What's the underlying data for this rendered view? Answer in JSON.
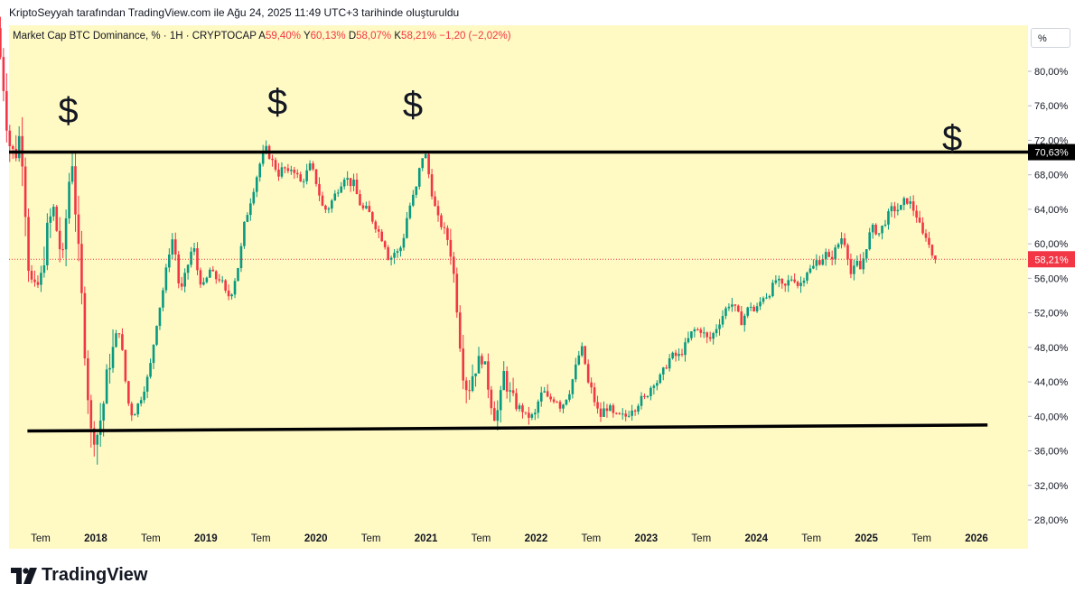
{
  "caption": "KriptoSeyyah tarafından TradingView.com ile Ağu 24, 2025 11:49 UTC+3 tarihinde oluşturuldu",
  "header": {
    "symbol": "Market Cap BTC Dominance, % · 1H · CRYPTOCAP",
    "a_label": "A",
    "a_value": "59,40%",
    "y_label": "Y",
    "y_value": "60,13%",
    "d_label": "D",
    "d_value": "58,07%",
    "k_label": "K",
    "k_value": "58,21%",
    "change": "−1,20 (−2,02%)"
  },
  "scale_button": "%",
  "logo_text": "TradingView",
  "colors": {
    "background": "#fff9c4",
    "up": "#089981",
    "down": "#f23645",
    "line": "#000000"
  },
  "chart_data": {
    "type": "candlestick",
    "title": "",
    "ylim": [
      26,
      85
    ],
    "y_ticks": [
      {
        "value": 80,
        "label": "80,00%"
      },
      {
        "value": 76,
        "label": "76,00%"
      },
      {
        "value": 72,
        "label": "72,00%"
      },
      {
        "value": 68,
        "label": "68,00%"
      },
      {
        "value": 64,
        "label": "64,00%"
      },
      {
        "value": 60,
        "label": "60,00%"
      },
      {
        "value": 56,
        "label": "56,00%"
      },
      {
        "value": 52,
        "label": "52,00%"
      },
      {
        "value": 48,
        "label": "48,00%"
      },
      {
        "value": 44,
        "label": "44,00%"
      },
      {
        "value": 40,
        "label": "40,00%"
      },
      {
        "value": 36,
        "label": "36,00%"
      },
      {
        "value": 32,
        "label": "32,00%"
      },
      {
        "value": 28,
        "label": "28,00%"
      }
    ],
    "x_ticks": [
      {
        "value": 2017.5,
        "label": "Tem",
        "bold": false
      },
      {
        "value": 2018,
        "label": "2018",
        "bold": true
      },
      {
        "value": 2018.5,
        "label": "Tem",
        "bold": false
      },
      {
        "value": 2019,
        "label": "2019",
        "bold": true
      },
      {
        "value": 2019.5,
        "label": "Tem",
        "bold": false
      },
      {
        "value": 2020,
        "label": "2020",
        "bold": true
      },
      {
        "value": 2020.5,
        "label": "Tem",
        "bold": false
      },
      {
        "value": 2021,
        "label": "2021",
        "bold": true
      },
      {
        "value": 2021.5,
        "label": "Tem",
        "bold": false
      },
      {
        "value": 2022,
        "label": "2022",
        "bold": true
      },
      {
        "value": 2022.5,
        "label": "Tem",
        "bold": false
      },
      {
        "value": 2023,
        "label": "2023",
        "bold": true
      },
      {
        "value": 2023.5,
        "label": "Tem",
        "bold": false
      },
      {
        "value": 2024,
        "label": "2024",
        "bold": true
      },
      {
        "value": 2024.5,
        "label": "Tem",
        "bold": false
      },
      {
        "value": 2025,
        "label": "2025",
        "bold": true
      },
      {
        "value": 2025.5,
        "label": "Tem",
        "bold": false
      },
      {
        "value": 2026,
        "label": "2026",
        "bold": true
      }
    ],
    "price_path": [
      [
        2017.12,
        85
      ],
      [
        2017.18,
        78
      ],
      [
        2017.22,
        72
      ],
      [
        2017.28,
        70
      ],
      [
        2017.33,
        73
      ],
      [
        2017.36,
        68
      ],
      [
        2017.4,
        58
      ],
      [
        2017.45,
        54
      ],
      [
        2017.52,
        56
      ],
      [
        2017.58,
        62
      ],
      [
        2017.63,
        64
      ],
      [
        2017.68,
        60
      ],
      [
        2017.72,
        58
      ],
      [
        2017.76,
        66
      ],
      [
        2017.8,
        70
      ],
      [
        2017.84,
        62
      ],
      [
        2017.88,
        55
      ],
      [
        2017.93,
        45
      ],
      [
        2017.97,
        38
      ],
      [
        2018.03,
        38
      ],
      [
        2018.08,
        41
      ],
      [
        2018.13,
        46
      ],
      [
        2018.18,
        48
      ],
      [
        2018.23,
        50
      ],
      [
        2018.27,
        46
      ],
      [
        2018.3,
        42
      ],
      [
        2018.35,
        40
      ],
      [
        2018.42,
        42
      ],
      [
        2018.5,
        45
      ],
      [
        2018.57,
        51
      ],
      [
        2018.63,
        55
      ],
      [
        2018.68,
        59
      ],
      [
        2018.72,
        61
      ],
      [
        2018.78,
        54
      ],
      [
        2018.84,
        57
      ],
      [
        2018.9,
        60
      ],
      [
        2018.95,
        56
      ],
      [
        2019.0,
        55
      ],
      [
        2019.05,
        57
      ],
      [
        2019.1,
        56
      ],
      [
        2019.15,
        56
      ],
      [
        2019.2,
        54
      ],
      [
        2019.24,
        54
      ],
      [
        2019.28,
        56
      ],
      [
        2019.32,
        58
      ],
      [
        2019.36,
        62
      ],
      [
        2019.4,
        64
      ],
      [
        2019.44,
        66
      ],
      [
        2019.48,
        68
      ],
      [
        2019.52,
        70
      ],
      [
        2019.56,
        71
      ],
      [
        2019.6,
        70
      ],
      [
        2019.64,
        69
      ],
      [
        2019.68,
        68
      ],
      [
        2019.72,
        69
      ],
      [
        2019.76,
        68
      ],
      [
        2019.8,
        69
      ],
      [
        2019.84,
        68
      ],
      [
        2019.88,
        67
      ],
      [
        2019.92,
        68
      ],
      [
        2019.96,
        69
      ],
      [
        2020.0,
        68
      ],
      [
        2020.04,
        66
      ],
      [
        2020.08,
        64
      ],
      [
        2020.12,
        64
      ],
      [
        2020.16,
        65
      ],
      [
        2020.2,
        66
      ],
      [
        2020.24,
        67
      ],
      [
        2020.28,
        68
      ],
      [
        2020.32,
        67
      ],
      [
        2020.36,
        67
      ],
      [
        2020.4,
        65
      ],
      [
        2020.44,
        64
      ],
      [
        2020.48,
        64
      ],
      [
        2020.52,
        63
      ],
      [
        2020.56,
        62
      ],
      [
        2020.6,
        61
      ],
      [
        2020.64,
        60
      ],
      [
        2020.68,
        58
      ],
      [
        2020.72,
        59
      ],
      [
        2020.76,
        59
      ],
      [
        2020.8,
        60
      ],
      [
        2020.84,
        63
      ],
      [
        2020.88,
        65
      ],
      [
        2020.92,
        66
      ],
      [
        2020.96,
        69
      ],
      [
        2021.0,
        71
      ],
      [
        2021.04,
        68
      ],
      [
        2021.08,
        65
      ],
      [
        2021.12,
        63
      ],
      [
        2021.16,
        62
      ],
      [
        2021.2,
        61
      ],
      [
        2021.24,
        59
      ],
      [
        2021.28,
        55
      ],
      [
        2021.32,
        49
      ],
      [
        2021.36,
        44
      ],
      [
        2021.4,
        43
      ],
      [
        2021.44,
        45
      ],
      [
        2021.48,
        46
      ],
      [
        2021.52,
        47
      ],
      [
        2021.56,
        45
      ],
      [
        2021.6,
        42
      ],
      [
        2021.64,
        40
      ],
      [
        2021.68,
        41
      ],
      [
        2021.72,
        45
      ],
      [
        2021.76,
        43
      ],
      [
        2021.8,
        42
      ],
      [
        2021.84,
        41
      ],
      [
        2021.88,
        41
      ],
      [
        2021.92,
        40
      ],
      [
        2021.96,
        40
      ],
      [
        2022.0,
        40
      ],
      [
        2022.04,
        42
      ],
      [
        2022.08,
        43
      ],
      [
        2022.12,
        42
      ],
      [
        2022.16,
        42
      ],
      [
        2022.2,
        42
      ],
      [
        2022.24,
        41
      ],
      [
        2022.28,
        42
      ],
      [
        2022.32,
        43
      ],
      [
        2022.36,
        45
      ],
      [
        2022.4,
        47
      ],
      [
        2022.44,
        48
      ],
      [
        2022.48,
        44
      ],
      [
        2022.52,
        43
      ],
      [
        2022.56,
        41
      ],
      [
        2022.6,
        40
      ],
      [
        2022.64,
        41
      ],
      [
        2022.68,
        41
      ],
      [
        2022.72,
        40
      ],
      [
        2022.76,
        40
      ],
      [
        2022.8,
        40
      ],
      [
        2022.84,
        40
      ],
      [
        2022.88,
        41
      ],
      [
        2022.92,
        41
      ],
      [
        2022.96,
        42
      ],
      [
        2023.0,
        42
      ],
      [
        2023.04,
        43
      ],
      [
        2023.08,
        44
      ],
      [
        2023.12,
        44
      ],
      [
        2023.16,
        45
      ],
      [
        2023.2,
        46
      ],
      [
        2023.24,
        47
      ],
      [
        2023.28,
        47
      ],
      [
        2023.32,
        47
      ],
      [
        2023.36,
        48
      ],
      [
        2023.4,
        49
      ],
      [
        2023.44,
        50
      ],
      [
        2023.48,
        50
      ],
      [
        2023.52,
        50
      ],
      [
        2023.56,
        49
      ],
      [
        2023.6,
        49
      ],
      [
        2023.64,
        50
      ],
      [
        2023.68,
        51
      ],
      [
        2023.72,
        52
      ],
      [
        2023.76,
        53
      ],
      [
        2023.8,
        53
      ],
      [
        2023.84,
        52
      ],
      [
        2023.88,
        51
      ],
      [
        2023.92,
        52
      ],
      [
        2023.96,
        53
      ],
      [
        2024.0,
        52
      ],
      [
        2024.04,
        53
      ],
      [
        2024.08,
        54
      ],
      [
        2024.12,
        54
      ],
      [
        2024.16,
        55
      ],
      [
        2024.2,
        56
      ],
      [
        2024.24,
        55
      ],
      [
        2024.28,
        55
      ],
      [
        2024.32,
        56
      ],
      [
        2024.36,
        56
      ],
      [
        2024.4,
        55
      ],
      [
        2024.44,
        56
      ],
      [
        2024.48,
        57
      ],
      [
        2024.52,
        57
      ],
      [
        2024.56,
        58
      ],
      [
        2024.6,
        58
      ],
      [
        2024.64,
        59
      ],
      [
        2024.68,
        58
      ],
      [
        2024.72,
        59
      ],
      [
        2024.76,
        60
      ],
      [
        2024.8,
        61
      ],
      [
        2024.84,
        59
      ],
      [
        2024.88,
        56
      ],
      [
        2024.92,
        58
      ],
      [
        2024.96,
        57
      ],
      [
        2025.0,
        59
      ],
      [
        2025.04,
        61
      ],
      [
        2025.08,
        62
      ],
      [
        2025.12,
        61
      ],
      [
        2025.16,
        62
      ],
      [
        2025.2,
        63
      ],
      [
        2025.24,
        64
      ],
      [
        2025.28,
        64
      ],
      [
        2025.32,
        64
      ],
      [
        2025.36,
        65
      ],
      [
        2025.4,
        65
      ],
      [
        2025.44,
        64
      ],
      [
        2025.48,
        63
      ],
      [
        2025.52,
        61
      ],
      [
        2025.56,
        61
      ],
      [
        2025.6,
        59
      ],
      [
        2025.64,
        58.2
      ]
    ],
    "support_line": {
      "x_start": 2017.38,
      "y_start": 38.3,
      "x_end": 2026.1,
      "y_end": 39.0
    },
    "resistance_line": {
      "y": 70.63,
      "label": "70,63%"
    },
    "last_price": {
      "y": 58.21,
      "label": "58,21%"
    },
    "markers": [
      {
        "x": 2017.75,
        "y": 75.5,
        "label": "$"
      },
      {
        "x": 2019.65,
        "y": 76.5,
        "label": "$"
      },
      {
        "x": 2020.88,
        "y": 76.2,
        "label": "$"
      },
      {
        "x": 2025.78,
        "y": 72.3,
        "label": "$"
      }
    ]
  }
}
